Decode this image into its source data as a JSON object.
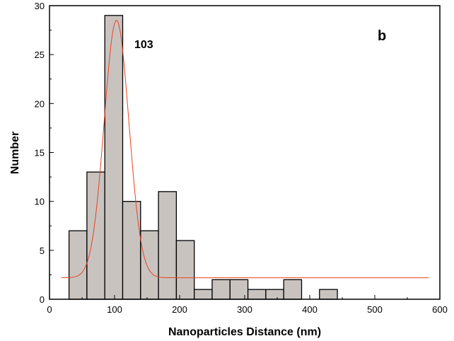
{
  "chart_data": {
    "type": "bar",
    "panel_label": "b",
    "peak_annotation": "103",
    "xlabel": "Nanoparticles Distance (nm)",
    "ylabel": "Number",
    "xlim": [
      0,
      600
    ],
    "ylim": [
      0,
      30
    ],
    "x_ticks": [
      0,
      100,
      200,
      300,
      400,
      500,
      600
    ],
    "y_ticks": [
      0,
      5,
      10,
      15,
      20,
      25,
      30
    ],
    "bin_width": 27.5,
    "bins": [
      {
        "center": 43.75,
        "value": 7
      },
      {
        "center": 71.25,
        "value": 13
      },
      {
        "center": 98.75,
        "value": 29
      },
      {
        "center": 126.25,
        "value": 10
      },
      {
        "center": 153.75,
        "value": 7
      },
      {
        "center": 181.25,
        "value": 11
      },
      {
        "center": 208.75,
        "value": 6
      },
      {
        "center": 236.25,
        "value": 1
      },
      {
        "center": 263.75,
        "value": 2
      },
      {
        "center": 291.25,
        "value": 2
      },
      {
        "center": 318.75,
        "value": 1
      },
      {
        "center": 346.25,
        "value": 1
      },
      {
        "center": 373.75,
        "value": 2
      },
      {
        "center": 428.75,
        "value": 1
      }
    ],
    "fit": {
      "type": "gaussian",
      "center": 103,
      "baseline": 2.2,
      "amplitude": 26.3,
      "sigma": 19,
      "x_range": [
        18,
        583
      ]
    },
    "colors": {
      "bar_fill": "#c9c3c0",
      "bar_stroke": "#000000",
      "fit_line": "#e8421f"
    }
  }
}
